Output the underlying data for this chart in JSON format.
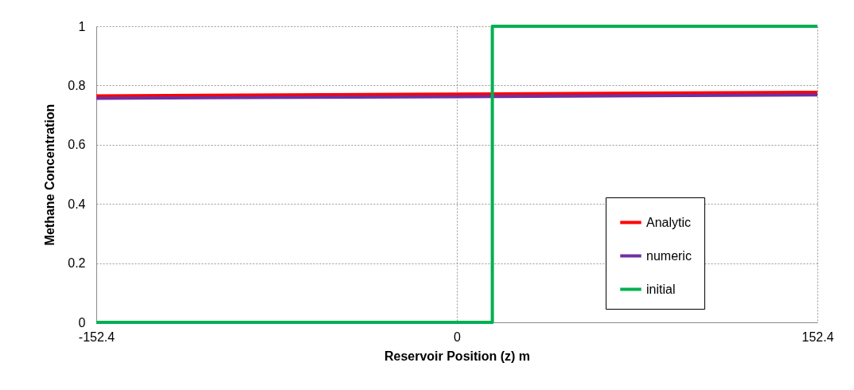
{
  "chart_data": {
    "type": "line",
    "xlabel": "Reservoir Position (z) m",
    "ylabel": "Methane Concentration",
    "xlim": [
      -152.4,
      152.4
    ],
    "xticks": [
      -152.4,
      0,
      152.4
    ],
    "ylim": [
      0,
      1
    ],
    "yticks": [
      0,
      0.2,
      0.4,
      0.6,
      0.8,
      1
    ],
    "grid": true,
    "legend": "bottom right",
    "marker": "none",
    "line_style": "solid",
    "series": [
      {
        "name": "Analytic",
        "color": "#ff0000",
        "x": [
          -152.4,
          0,
          152.4
        ],
        "values": [
          0.765,
          0.771,
          0.777
        ]
      },
      {
        "name": "numeric",
        "color": "#7030a0",
        "x": [
          -152.4,
          0,
          152.4
        ],
        "values": [
          0.757,
          0.762,
          0.768
        ]
      },
      {
        "name": "initial",
        "color": "#00b050",
        "x": [
          -152.4,
          15,
          15,
          152.4
        ],
        "values": [
          0,
          0,
          1,
          1
        ]
      }
    ]
  }
}
